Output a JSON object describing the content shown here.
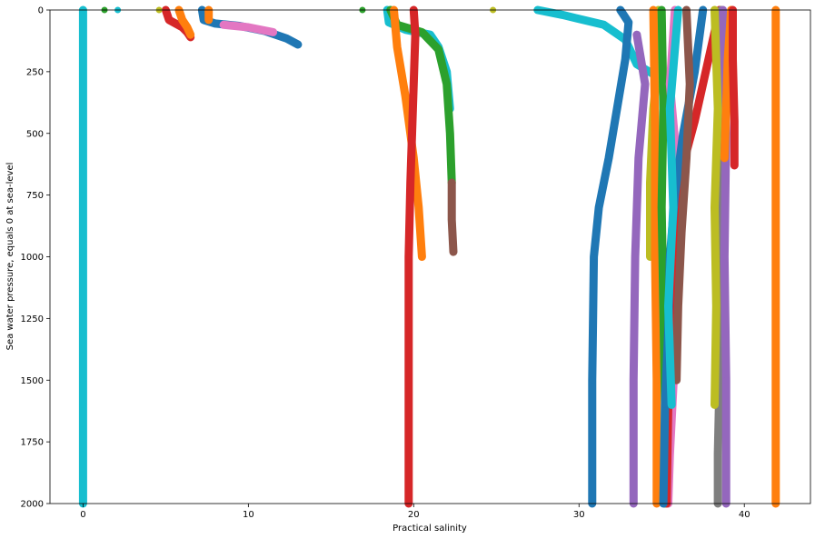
{
  "chart_data": {
    "type": "scatter",
    "title": "",
    "xlabel": "Practical salinity",
    "ylabel": "Sea water pressure, equals 0 at sea-level",
    "xlim": [
      -2,
      44
    ],
    "ylim": [
      2000,
      0
    ],
    "y_inverted": true,
    "xticks": [
      0,
      10,
      20,
      30,
      40
    ],
    "yticks": [
      0,
      250,
      500,
      750,
      1000,
      1250,
      1500,
      1750,
      2000
    ],
    "grid": false,
    "legend": "none",
    "series": [
      {
        "color": "#17becf",
        "points": [
          [
            0,
            0
          ],
          [
            0,
            250
          ],
          [
            0,
            500
          ],
          [
            0,
            750
          ],
          [
            0,
            980
          ],
          [
            0,
            1000
          ],
          [
            0,
            1100
          ],
          [
            0,
            1200
          ],
          [
            0,
            1300
          ],
          [
            0,
            1400
          ],
          [
            0,
            1500
          ],
          [
            0,
            1600
          ],
          [
            0,
            1700
          ],
          [
            0,
            1800
          ],
          [
            0,
            1900
          ],
          [
            0,
            2000
          ]
        ]
      },
      {
        "color": "#d62728",
        "points": [
          [
            5.0,
            0
          ],
          [
            5.2,
            40
          ],
          [
            5.6,
            55
          ],
          [
            6.0,
            70
          ],
          [
            6.3,
            90
          ],
          [
            6.5,
            110
          ]
        ]
      },
      {
        "color": "#ff7f0e",
        "points": [
          [
            5.8,
            0
          ],
          [
            6.0,
            40
          ],
          [
            6.3,
            70
          ],
          [
            6.5,
            100
          ]
        ]
      },
      {
        "color": "#1f77b4",
        "points": [
          [
            7.2,
            0
          ],
          [
            7.3,
            40
          ],
          [
            8.0,
            55
          ],
          [
            9.5,
            65
          ],
          [
            11,
            85
          ],
          [
            12.3,
            115
          ],
          [
            13,
            140
          ]
        ]
      },
      {
        "color": "#ff7f0e",
        "points": [
          [
            7.6,
            0
          ],
          [
            7.6,
            40
          ]
        ]
      },
      {
        "color": "#e377c2",
        "points": [
          [
            8.5,
            60
          ],
          [
            10,
            70
          ],
          [
            11.5,
            90
          ]
        ]
      },
      {
        "color": "#17becf",
        "points": [
          [
            18.4,
            0
          ],
          [
            18.5,
            50
          ],
          [
            19.5,
            80
          ],
          [
            21,
            100
          ],
          [
            21.5,
            150
          ],
          [
            22,
            250
          ],
          [
            22.2,
            400
          ]
        ]
      },
      {
        "color": "#2ca02c",
        "points": [
          [
            18.6,
            0
          ],
          [
            19,
            60
          ],
          [
            20.5,
            90
          ],
          [
            21.5,
            160
          ],
          [
            22,
            300
          ],
          [
            22.2,
            500
          ],
          [
            22.3,
            700
          ]
        ]
      },
      {
        "color": "#8c564b",
        "points": [
          [
            22.3,
            700
          ],
          [
            22.3,
            850
          ],
          [
            22.4,
            980
          ]
        ]
      },
      {
        "color": "#ff7f0e",
        "points": [
          [
            18.8,
            0
          ],
          [
            19,
            150
          ],
          [
            19.5,
            350
          ],
          [
            20,
            600
          ],
          [
            20.3,
            800
          ],
          [
            20.5,
            1000
          ]
        ]
      },
      {
        "color": "#d62728",
        "points": [
          [
            20.0,
            0
          ],
          [
            20.1,
            100
          ],
          [
            20.0,
            300
          ],
          [
            19.9,
            500
          ],
          [
            19.8,
            700
          ],
          [
            19.7,
            1000
          ],
          [
            19.7,
            1500
          ],
          [
            19.7,
            2000
          ]
        ]
      },
      {
        "color": "#17becf",
        "points": [
          [
            27.5,
            0
          ],
          [
            29,
            20
          ],
          [
            31.5,
            60
          ],
          [
            32.8,
            120
          ],
          [
            33.5,
            220
          ],
          [
            34.5,
            260
          ]
        ]
      },
      {
        "color": "#1f77b4",
        "points": [
          [
            32.5,
            0
          ],
          [
            33,
            50
          ],
          [
            32.8,
            200
          ],
          [
            32.3,
            400
          ],
          [
            31.8,
            600
          ],
          [
            31.2,
            800
          ],
          [
            30.9,
            1000
          ],
          [
            30.8,
            1500
          ],
          [
            30.8,
            2000
          ]
        ]
      },
      {
        "color": "#9467bd",
        "points": [
          [
            33.5,
            100
          ],
          [
            34,
            300
          ],
          [
            33.6,
            600
          ],
          [
            33.4,
            1000
          ],
          [
            33.3,
            1500
          ],
          [
            33.3,
            2000
          ]
        ]
      },
      {
        "color": "#bcbd22",
        "points": [
          [
            34.8,
            0
          ],
          [
            34.8,
            200
          ],
          [
            34.5,
            400
          ],
          [
            34.3,
            700
          ],
          [
            34.3,
            1000
          ]
        ]
      },
      {
        "color": "#ff7f0e",
        "points": [
          [
            34.5,
            0
          ],
          [
            34.6,
            500
          ],
          [
            34.6,
            1000
          ],
          [
            34.7,
            1500
          ],
          [
            34.7,
            2000
          ]
        ]
      },
      {
        "color": "#2ca02c",
        "points": [
          [
            35.0,
            0
          ],
          [
            35.1,
            400
          ],
          [
            35.0,
            800
          ],
          [
            35.1,
            1200
          ],
          [
            35.2,
            1600
          ],
          [
            35.2,
            2000
          ]
        ]
      },
      {
        "color": "#e377c2",
        "points": [
          [
            35.8,
            0
          ],
          [
            35.5,
            300
          ],
          [
            35.9,
            600
          ],
          [
            35.7,
            1000
          ],
          [
            35.8,
            1400
          ],
          [
            35.5,
            1800
          ],
          [
            35.4,
            2000
          ]
        ]
      },
      {
        "color": "#d62728",
        "points": [
          [
            38.5,
            0
          ],
          [
            38,
            150
          ],
          [
            37.5,
            300
          ],
          [
            37,
            450
          ],
          [
            36.4,
            600
          ],
          [
            36,
            800
          ],
          [
            35.8,
            1000
          ],
          [
            35.6,
            1300
          ],
          [
            35.4,
            1600
          ],
          [
            35.3,
            2000
          ]
        ]
      },
      {
        "color": "#1f77b4",
        "points": [
          [
            37.5,
            0
          ],
          [
            37,
            250
          ],
          [
            36.3,
            500
          ],
          [
            35.8,
            750
          ],
          [
            35.5,
            1000
          ],
          [
            35.4,
            1300
          ],
          [
            35.2,
            1600
          ],
          [
            35.1,
            2000
          ]
        ]
      },
      {
        "color": "#8c564b",
        "points": [
          [
            36.5,
            0
          ],
          [
            36.7,
            300
          ],
          [
            36.5,
            600
          ],
          [
            36.2,
            900
          ],
          [
            36,
            1200
          ],
          [
            35.9,
            1500
          ]
        ]
      },
      {
        "color": "#17becf",
        "points": [
          [
            36.0,
            0
          ],
          [
            35.5,
            400
          ],
          [
            35.7,
            800
          ],
          [
            35.4,
            1200
          ],
          [
            35.6,
            1600
          ]
        ]
      },
      {
        "color": "#7f7f7f",
        "points": [
          [
            38.6,
            0
          ],
          [
            38.8,
            300
          ],
          [
            38.5,
            600
          ],
          [
            38.4,
            900
          ],
          [
            38.4,
            1200
          ],
          [
            38.5,
            1500
          ],
          [
            38.4,
            1800
          ],
          [
            38.4,
            2000
          ]
        ]
      },
      {
        "color": "#9467bd",
        "points": [
          [
            38.7,
            0
          ],
          [
            38.9,
            500
          ],
          [
            38.8,
            1000
          ],
          [
            38.9,
            1500
          ],
          [
            38.9,
            2000
          ]
        ]
      },
      {
        "color": "#bcbd22",
        "points": [
          [
            38.2,
            0
          ],
          [
            38.4,
            400
          ],
          [
            38.2,
            800
          ],
          [
            38.3,
            1200
          ],
          [
            38.2,
            1600
          ]
        ]
      },
      {
        "color": "#ff7f0e",
        "points": [
          [
            39.2,
            0
          ],
          [
            39,
            200
          ],
          [
            38.9,
            400
          ],
          [
            38.8,
            600
          ]
        ]
      },
      {
        "color": "#d62728",
        "points": [
          [
            39.3,
            0
          ],
          [
            39.3,
            200
          ],
          [
            39.4,
            450
          ],
          [
            39.4,
            630
          ]
        ]
      },
      {
        "color": "#ff7f0e",
        "points": [
          [
            41.9,
            0
          ],
          [
            41.9,
            400
          ],
          [
            41.9,
            800
          ],
          [
            41.9,
            1200
          ],
          [
            41.9,
            1600
          ],
          [
            41.9,
            2000
          ]
        ]
      }
    ],
    "surface_points": [
      {
        "color": "#2ca02c",
        "x": 1.3,
        "y": 0
      },
      {
        "color": "#17becf",
        "x": 2.1,
        "y": 0
      },
      {
        "color": "#bcbd22",
        "x": 4.6,
        "y": 0
      },
      {
        "color": "#2ca02c",
        "x": 16.9,
        "y": 0
      },
      {
        "color": "#bcbd22",
        "x": 24.8,
        "y": 0
      }
    ]
  }
}
